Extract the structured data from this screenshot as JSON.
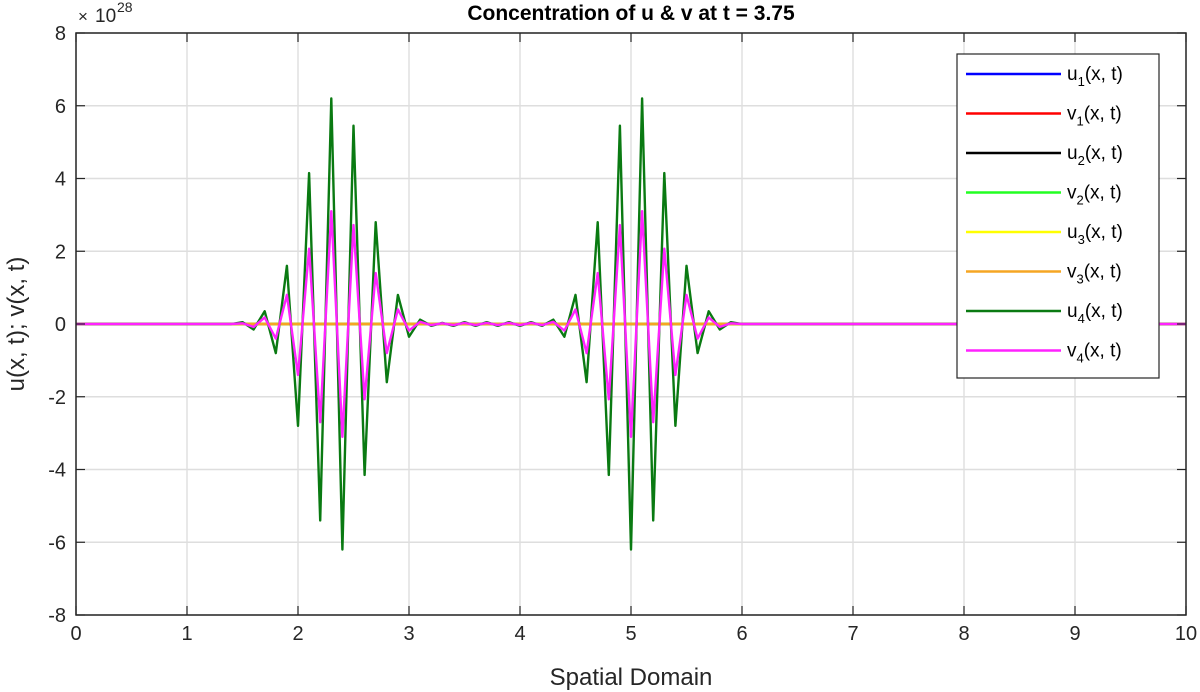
{
  "chart_data": {
    "type": "line",
    "title": "Concentration of u & v at t = 3.75",
    "xlabel": "Spatial Domain",
    "ylabel": "u(x, t); v(x, t)",
    "exponent_label": {
      "times": "×",
      "base": "10",
      "power": "28"
    },
    "xlim": [
      0,
      10
    ],
    "ylim": [
      -8,
      8
    ],
    "xticks": [
      0,
      1,
      2,
      3,
      4,
      5,
      6,
      7,
      8,
      9,
      10
    ],
    "yticks": [
      -8,
      -6,
      -4,
      -2,
      0,
      2,
      4,
      6,
      8
    ],
    "grid": true,
    "legend_position": "top-right",
    "x": [
      0,
      0.1,
      0.2,
      0.3,
      0.4,
      0.5,
      0.6,
      0.7,
      0.8,
      0.9,
      1.0,
      1.1,
      1.2,
      1.3,
      1.4,
      1.5,
      1.6,
      1.7,
      1.8,
      1.9,
      2.0,
      2.1,
      2.2,
      2.3,
      2.4,
      2.5,
      2.6,
      2.7,
      2.8,
      2.9,
      3.0,
      3.1,
      3.2,
      3.3,
      3.4,
      3.5,
      3.6,
      3.7,
      3.8,
      3.9,
      4.0,
      4.1,
      4.2,
      4.3,
      4.4,
      4.5,
      4.6,
      4.7,
      4.8,
      4.9,
      5.0,
      5.1,
      5.2,
      5.3,
      5.4,
      5.5,
      5.6,
      5.7,
      5.8,
      5.9,
      6.0,
      6.1,
      6.2,
      6.3,
      6.4,
      6.5,
      6.6,
      6.7,
      6.8,
      6.9,
      7.0,
      7.1,
      7.2,
      7.3,
      7.4,
      7.5,
      7.6,
      7.7,
      7.8,
      7.9,
      8.0,
      8.1,
      8.2,
      8.3,
      8.4,
      8.5,
      8.6,
      8.7,
      8.8,
      8.9,
      9.0,
      9.1,
      9.2,
      9.3,
      9.4,
      9.5,
      9.6,
      9.7,
      9.8,
      9.9,
      10.0
    ],
    "series": [
      {
        "name": "u1(x, t)",
        "label_main": "u",
        "label_sub": "1",
        "label_rest": "(x, t)",
        "color": "#0000ff",
        "values": [
          0,
          0,
          0,
          0,
          0,
          0,
          0,
          0,
          0,
          0,
          0,
          0,
          0,
          0,
          0,
          0,
          0,
          0,
          0,
          0,
          0,
          0,
          0,
          0,
          0,
          0,
          0,
          0,
          0,
          0,
          0,
          0,
          0,
          0,
          0,
          0,
          0,
          0,
          0,
          0,
          0,
          0,
          0,
          0,
          0,
          0,
          0,
          0,
          0,
          0,
          0,
          0,
          0,
          0,
          0,
          0,
          0,
          0,
          0,
          0,
          0,
          0,
          0,
          0,
          0,
          0,
          0,
          0,
          0,
          0,
          0,
          0,
          0,
          0,
          0,
          0,
          0,
          0,
          0,
          0,
          0,
          0,
          0,
          0,
          0,
          0,
          0,
          0,
          0,
          0,
          0,
          0,
          0,
          0,
          0,
          0,
          0,
          0,
          0,
          0,
          0
        ]
      },
      {
        "name": "v1(x, t)",
        "label_main": "v",
        "label_sub": "1",
        "label_rest": "(x, t)",
        "color": "#ff0000",
        "values": [
          0,
          0,
          0,
          0,
          0,
          0,
          0,
          0,
          0,
          0,
          0,
          0,
          0,
          0,
          0,
          0,
          0,
          0,
          0,
          0,
          0,
          0,
          0,
          0,
          0,
          0,
          0,
          0,
          0,
          0,
          0,
          0,
          0,
          0,
          0,
          0,
          0,
          0,
          0,
          0,
          0,
          0,
          0,
          0,
          0,
          0,
          0,
          0,
          0,
          0,
          0,
          0,
          0,
          0,
          0,
          0,
          0,
          0,
          0,
          0,
          0,
          0,
          0,
          0,
          0,
          0,
          0,
          0,
          0,
          0,
          0,
          0,
          0,
          0,
          0,
          0,
          0,
          0,
          0,
          0,
          0,
          0,
          0,
          0,
          0,
          0,
          0,
          0,
          0,
          0,
          0,
          0,
          0,
          0,
          0,
          0,
          0,
          0,
          0,
          0,
          0
        ]
      },
      {
        "name": "u2(x, t)",
        "label_main": "u",
        "label_sub": "2",
        "label_rest": "(x, t)",
        "color": "#000000",
        "values": [
          0,
          0,
          0,
          0,
          0,
          0,
          0,
          0,
          0,
          0,
          0,
          0,
          0,
          0,
          0,
          0,
          0,
          0,
          0,
          0,
          0,
          0,
          0,
          0,
          0,
          0,
          0,
          0,
          0,
          0,
          0,
          0,
          0,
          0,
          0,
          0,
          0,
          0,
          0,
          0,
          0,
          0,
          0,
          0,
          0,
          0,
          0,
          0,
          0,
          0,
          0,
          0,
          0,
          0,
          0,
          0,
          0,
          0,
          0,
          0,
          0,
          0,
          0,
          0,
          0,
          0,
          0,
          0,
          0,
          0,
          0,
          0,
          0,
          0,
          0,
          0,
          0,
          0,
          0,
          0,
          0,
          0,
          0,
          0,
          0,
          0,
          0,
          0,
          0,
          0,
          0,
          0,
          0,
          0,
          0,
          0,
          0,
          0,
          0,
          0,
          0
        ]
      },
      {
        "name": "v2(x, t)",
        "label_main": "v",
        "label_sub": "2",
        "label_rest": "(x, t)",
        "color": "#22ff22",
        "values": [
          0,
          0,
          0,
          0,
          0,
          0,
          0,
          0,
          0,
          0,
          0,
          0,
          0,
          0,
          0,
          0,
          0,
          0,
          0,
          0,
          0,
          0,
          0,
          0,
          0,
          0,
          0,
          0,
          0,
          0,
          0,
          0,
          0,
          0,
          0,
          0,
          0,
          0,
          0,
          0,
          0,
          0,
          0,
          0,
          0,
          0,
          0,
          0,
          0,
          0,
          0,
          0,
          0,
          0,
          0,
          0,
          0,
          0,
          0,
          0,
          0,
          0,
          0,
          0,
          0,
          0,
          0,
          0,
          0,
          0,
          0,
          0,
          0,
          0,
          0,
          0,
          0,
          0,
          0,
          0,
          0,
          0,
          0,
          0,
          0,
          0,
          0,
          0,
          0,
          0,
          0,
          0,
          0,
          0,
          0,
          0,
          0,
          0,
          0,
          0,
          0
        ]
      },
      {
        "name": "u3(x, t)",
        "label_main": "u",
        "label_sub": "3",
        "label_rest": "(x, t)",
        "color": "#ffff00",
        "values": [
          0,
          0,
          0,
          0,
          0,
          0,
          0,
          0,
          0,
          0,
          0,
          0,
          0,
          0,
          0,
          0,
          0,
          0,
          0,
          0,
          0,
          0,
          0,
          0,
          0,
          0,
          0,
          0,
          0,
          0,
          0,
          0,
          0,
          0,
          0,
          0,
          0,
          0,
          0,
          0,
          0,
          0,
          0,
          0,
          0,
          0,
          0,
          0,
          0,
          0,
          0,
          0,
          0,
          0,
          0,
          0,
          0,
          0,
          0,
          0,
          0,
          0,
          0,
          0,
          0,
          0,
          0,
          0,
          0,
          0,
          0,
          0,
          0,
          0,
          0,
          0,
          0,
          0,
          0,
          0,
          0,
          0,
          0,
          0,
          0,
          0,
          0,
          0,
          0,
          0,
          0,
          0,
          0,
          0,
          0,
          0,
          0,
          0,
          0,
          0,
          0
        ]
      },
      {
        "name": "v3(x, t)",
        "label_main": "v",
        "label_sub": "3",
        "label_rest": "(x, t)",
        "color": "#f5a623",
        "values": [
          0,
          0,
          0,
          0,
          0,
          0,
          0,
          0,
          0,
          0,
          0,
          0,
          0,
          0,
          0,
          0,
          0,
          0,
          0,
          0,
          0,
          0,
          0,
          0,
          0,
          0,
          0,
          0,
          0,
          0,
          0,
          0,
          0,
          0,
          0,
          0,
          0,
          0,
          0,
          0,
          0,
          0,
          0,
          0,
          0,
          0,
          0,
          0,
          0,
          0,
          0,
          0,
          0,
          0,
          0,
          0,
          0,
          0,
          0,
          0,
          0,
          0,
          0,
          0,
          0,
          0,
          0,
          0,
          0,
          0,
          0,
          0,
          0,
          0,
          0,
          0,
          0,
          0,
          0,
          0,
          0,
          0,
          0,
          0,
          0,
          0,
          0,
          0,
          0,
          0,
          0,
          0,
          0,
          0,
          0,
          0,
          0,
          0,
          0,
          0,
          0
        ]
      },
      {
        "name": "u4(x, t)",
        "label_main": "u",
        "label_sub": "4",
        "label_rest": "(x, t)",
        "color": "#0a7a12",
        "values": [
          0,
          0,
          0,
          0,
          0,
          0,
          0,
          0,
          0,
          0,
          0,
          0,
          0,
          0,
          0,
          0.05,
          -0.15,
          0.35,
          -0.8,
          1.6,
          -2.8,
          4.15,
          -5.4,
          6.2,
          -6.2,
          5.45,
          -4.15,
          2.8,
          -1.6,
          0.8,
          -0.35,
          0.12,
          -0.05,
          0.03,
          -0.05,
          0.05,
          -0.05,
          0.05,
          -0.05,
          0.05,
          -0.05,
          0.05,
          -0.05,
          0.12,
          -0.35,
          0.8,
          -1.6,
          2.8,
          -4.15,
          5.45,
          -6.2,
          6.2,
          -5.4,
          4.15,
          -2.8,
          1.6,
          -0.8,
          0.35,
          -0.15,
          0.05,
          0,
          0,
          0,
          0,
          0,
          0,
          0,
          0,
          0,
          0,
          0,
          0,
          0,
          0,
          0,
          0,
          0,
          0,
          0,
          0,
          0,
          0,
          0,
          0,
          0,
          0,
          0,
          0,
          0,
          0,
          0,
          0,
          0,
          0,
          0,
          0,
          0,
          0,
          0,
          0,
          0
        ]
      },
      {
        "name": "v4(x, t)",
        "label_main": "v",
        "label_sub": "4",
        "label_rest": "(x, t)",
        "color": "#ff22ff",
        "values": [
          0,
          0,
          0,
          0,
          0,
          0,
          0,
          0,
          0,
          0,
          0,
          0,
          0,
          0,
          0,
          0.02,
          -0.08,
          0.18,
          -0.4,
          0.8,
          -1.4,
          2.07,
          -2.7,
          3.1,
          -3.1,
          2.72,
          -2.07,
          1.4,
          -0.8,
          0.4,
          -0.18,
          0.06,
          -0.03,
          0.02,
          -0.03,
          0.03,
          -0.03,
          0.03,
          -0.03,
          0.03,
          -0.03,
          0.03,
          -0.03,
          0.06,
          -0.18,
          0.4,
          -0.8,
          1.4,
          -2.07,
          2.72,
          -3.1,
          3.1,
          -2.7,
          2.07,
          -1.4,
          0.8,
          -0.4,
          0.18,
          -0.08,
          0.02,
          0,
          0,
          0,
          0,
          0,
          0,
          0,
          0,
          0,
          0,
          0,
          0,
          0,
          0,
          0,
          0,
          0,
          0,
          0,
          0,
          0,
          0,
          0,
          0,
          0,
          0,
          0,
          0,
          0,
          0,
          0,
          0,
          0,
          0,
          0,
          0,
          0,
          0,
          0,
          0,
          0
        ]
      }
    ]
  }
}
